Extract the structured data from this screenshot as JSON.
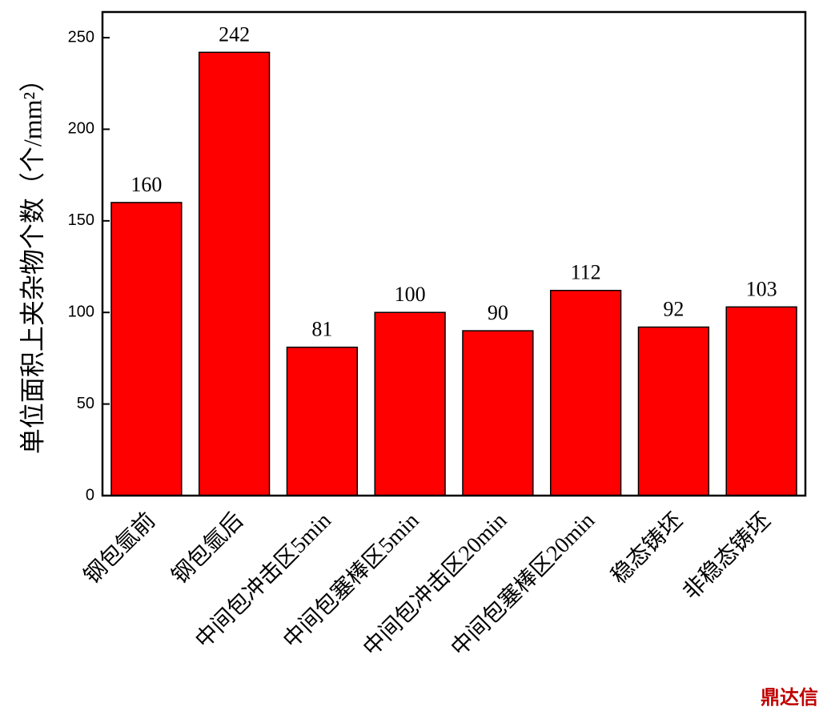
{
  "chart_data": {
    "type": "bar",
    "y_label": "单位面积上夹杂物个数（个/mm²）",
    "categories": [
      "钢包氩前",
      "钢包氩后",
      "中间包冲击区5min",
      "中间包塞棒区5min",
      "中间包冲击区20min",
      "中间包塞棒区20min",
      "稳态铸坯",
      "非稳态铸坯"
    ],
    "values": [
      160,
      242,
      81,
      100,
      90,
      112,
      92,
      103
    ],
    "color": "#ff0000",
    "ylim": [
      0,
      264
    ],
    "yticks": [
      0,
      50,
      100,
      150,
      200,
      250
    ],
    "grid": false
  },
  "watermark": "鼎达信"
}
